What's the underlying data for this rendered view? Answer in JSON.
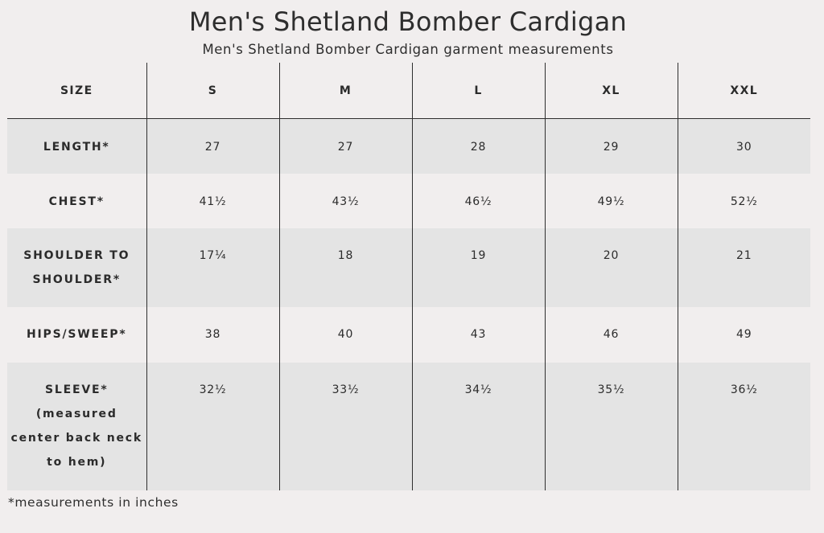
{
  "title": "Men's Shetland Bomber Cardigan",
  "subtitle": "Men's Shetland Bomber Cardigan garment measurements",
  "table": {
    "header": [
      "SIZE",
      "S",
      "M",
      "L",
      "XL",
      "XXL"
    ],
    "rows": [
      {
        "label_lines": [
          "LENGTH*"
        ],
        "values": [
          "27",
          "27",
          "28",
          "29",
          "30"
        ]
      },
      {
        "label_lines": [
          "CHEST*"
        ],
        "values": [
          "41½",
          "43½",
          "46½",
          "49½",
          "52½"
        ]
      },
      {
        "label_lines": [
          "SHOULDER TO",
          "SHOULDER*"
        ],
        "values": [
          "17¼",
          "18",
          "19",
          "20",
          "21"
        ]
      },
      {
        "label_lines": [
          "HIPS/SWEEP*"
        ],
        "values": [
          "38",
          "40",
          "43",
          "46",
          "49"
        ]
      },
      {
        "label_lines": [
          "SLEEVE*",
          "(measured",
          "center back neck",
          "to hem)"
        ],
        "values": [
          "32½",
          "33½",
          "34½",
          "35½",
          "36½"
        ]
      }
    ]
  },
  "footnote": "*measurements in inches",
  "colors": {
    "background": "#f1eeee",
    "shaded_row": "#e4e4e4",
    "text": "#2e2e2e"
  }
}
